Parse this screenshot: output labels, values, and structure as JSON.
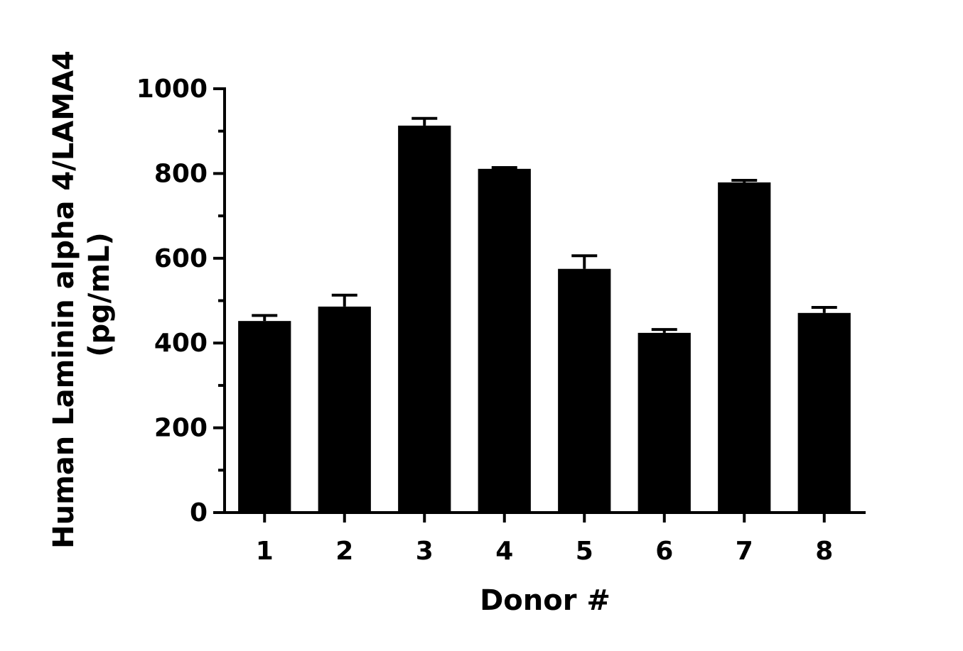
{
  "chart_data": {
    "type": "bar",
    "ylabel": [
      "Human Laminin alpha 4/LAMA4",
      "(pg/mL)"
    ],
    "xlabel": "Donor #",
    "categories": [
      "1",
      "2",
      "3",
      "4",
      "5",
      "6",
      "7",
      "8"
    ],
    "values": [
      452,
      486,
      913,
      811,
      575,
      424,
      779,
      471
    ],
    "errors": [
      13,
      27,
      17,
      3,
      31,
      8,
      5,
      13
    ],
    "color": "#000000",
    "ylim": [
      0,
      1000
    ],
    "yticks": [
      0,
      200,
      400,
      600,
      800,
      1000
    ],
    "yminorticks": [
      100,
      300,
      500,
      700,
      900
    ]
  }
}
